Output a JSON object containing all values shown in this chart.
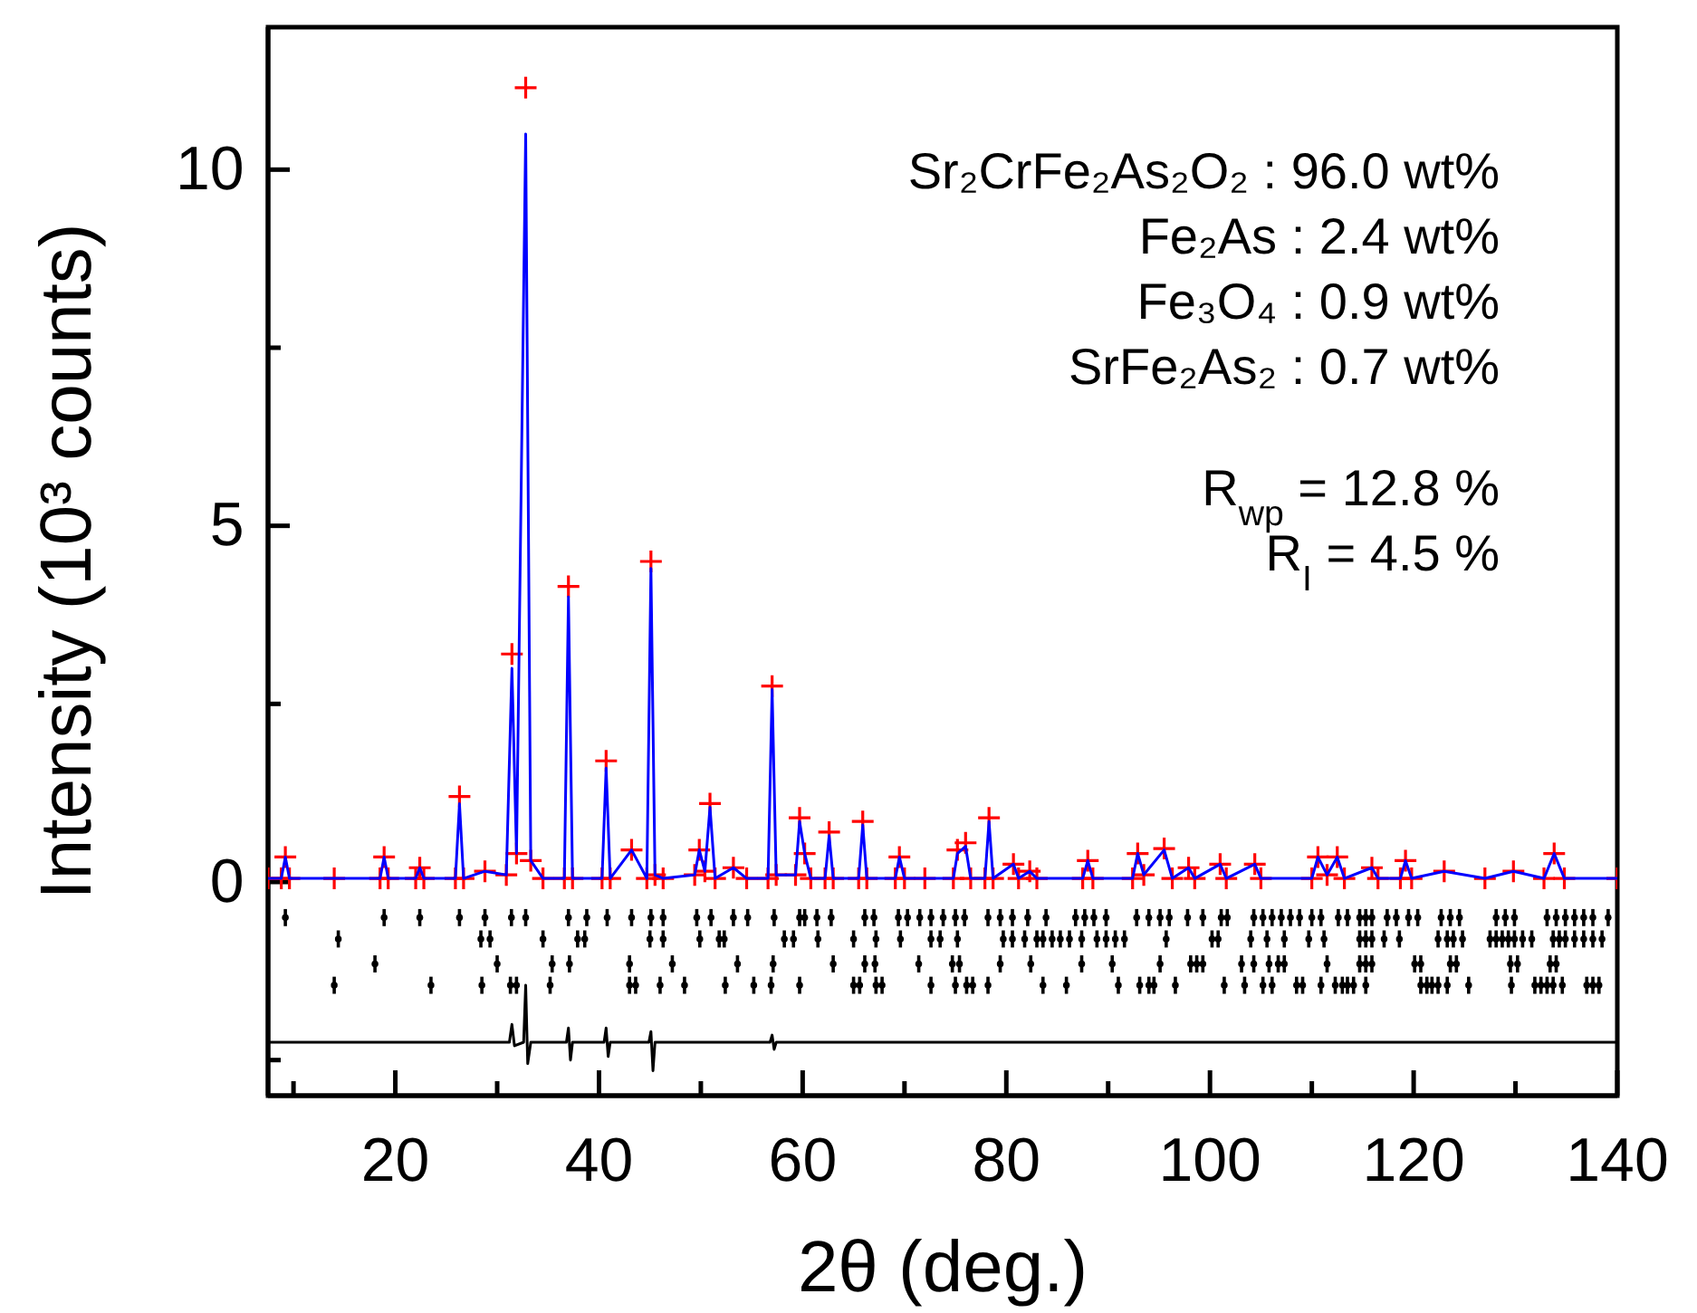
{
  "chart_data": {
    "type": "line",
    "xlabel": "2θ (deg.)",
    "ylabel": "Intensity (10³ counts)",
    "xlim": [
      7.5,
      140
    ],
    "ylim": [
      -3,
      12
    ],
    "xticks": [
      {
        "value": 10,
        "label": null
      },
      20,
      {
        "value": 30,
        "label": null
      },
      40,
      {
        "value": 50,
        "label": null
      },
      60,
      {
        "value": 70,
        "label": null
      },
      80,
      {
        "value": 90,
        "label": null
      },
      100,
      {
        "value": 110,
        "label": null
      },
      120,
      {
        "value": 130,
        "label": null
      },
      140
    ],
    "yticks": [
      {
        "value": -2.5,
        "label": null
      },
      0,
      {
        "value": 2.5,
        "label": null
      },
      5,
      {
        "value": 7.5,
        "label": null
      },
      10
    ],
    "annotations": [
      "Sr₂CrFe₂As₂O₂ : 96.0 wt%",
      "Fe₂As : 2.4 wt%",
      "Fe₃O₄ : 0.9 wt%",
      "SrFe₂As₂ : 0.7 wt%",
      "R$_{wp}$ = 12.8 %",
      "R$_{I}$ = 4.5 %"
    ],
    "series": [
      {
        "type": "scatter",
        "marker": "cross",
        "color": "#ff0000",
        "x": [
          7.5,
          8.8,
          9.2,
          9.6,
          14,
          18.5,
          18.9,
          19.3,
          22.0,
          22.4,
          22.8,
          25.9,
          26.3,
          26.7,
          28.8,
          30.9,
          31.45,
          31.9,
          32.8,
          33.3,
          34.5,
          36.6,
          37.0,
          37.4,
          40.3,
          40.7,
          41.1,
          43.2,
          44.7,
          45.1,
          45.5,
          46.3,
          49.4,
          49.85,
          50.4,
          50.9,
          51.4,
          53.2,
          54.5,
          56.6,
          57.0,
          57.4,
          59.3,
          59.7,
          60.2,
          60.8,
          62.2,
          62.6,
          63.0,
          65.5,
          65.9,
          66.3,
          69.1,
          69.5,
          70.0,
          72,
          74.8,
          75.2,
          76.0,
          76.5,
          77.9,
          78.3,
          78.7,
          80.7,
          81.2,
          82.3,
          83,
          87.5,
          88.0,
          88.5,
          92.4,
          92.9,
          93.5,
          95.5,
          96.3,
          97.9,
          98.5,
          101.0,
          101.6,
          104.4,
          105.0,
          110.0,
          110.6,
          111.5,
          112.5,
          113.2,
          115.9,
          116.5,
          118.7,
          119.2,
          119.8,
          123.0,
          127,
          129.8,
          132.8,
          133.8,
          134.8,
          140
        ],
        "values": [
          0.05,
          0.05,
          0.35,
          0.05,
          0.05,
          0.05,
          0.35,
          0.05,
          0.05,
          0.2,
          0.05,
          0.05,
          1.2,
          0.05,
          0.15,
          0.1,
          3.2,
          0.4,
          11.15,
          0.3,
          0.05,
          0.05,
          4.15,
          0.05,
          0.05,
          1.7,
          0.05,
          0.45,
          0.05,
          4.5,
          0.1,
          0.05,
          0.1,
          0.45,
          0.15,
          1.1,
          0.05,
          0.2,
          0.05,
          0.05,
          2.75,
          0.1,
          0.1,
          0.9,
          0.4,
          0.05,
          0.05,
          0.7,
          0.05,
          0.05,
          0.85,
          0.05,
          0.05,
          0.35,
          0.05,
          0.05,
          0.05,
          0.45,
          0.55,
          0.05,
          0.05,
          0.9,
          0.05,
          0.25,
          0.05,
          0.15,
          0.05,
          0.05,
          0.3,
          0.05,
          0.05,
          0.4,
          0.1,
          0.47,
          0.05,
          0.2,
          0.05,
          0.25,
          0.05,
          0.25,
          0.05,
          0.05,
          0.35,
          0.1,
          0.35,
          0.05,
          0.2,
          0.05,
          0.05,
          0.3,
          0.05,
          0.15,
          0.05,
          0.15,
          0.05,
          0.4,
          0.05,
          0.05
        ]
      },
      {
        "type": "line",
        "marker": "none",
        "color": "#0000ff",
        "x": [
          7.5,
          8.8,
          9.2,
          9.6,
          14,
          18.5,
          18.9,
          19.3,
          22.0,
          22.4,
          22.8,
          25.9,
          26.3,
          26.7,
          28.8,
          30.9,
          31.45,
          31.9,
          32.8,
          33.3,
          34.5,
          36.6,
          37.0,
          37.4,
          40.3,
          40.7,
          41.1,
          43.2,
          44.7,
          45.1,
          45.5,
          46.3,
          49.4,
          49.85,
          50.4,
          50.9,
          51.4,
          53.2,
          54.5,
          56.6,
          57.0,
          57.4,
          59.3,
          59.7,
          60.2,
          60.8,
          62.2,
          62.6,
          63.0,
          65.5,
          65.9,
          66.3,
          69.1,
          69.5,
          70.0,
          72,
          74.8,
          75.2,
          76.0,
          76.5,
          77.9,
          78.3,
          78.7,
          80.7,
          81.2,
          82.3,
          83,
          87.5,
          88.0,
          88.5,
          92.4,
          92.9,
          93.5,
          95.5,
          96.3,
          97.9,
          98.5,
          101.0,
          101.6,
          104.4,
          105.0,
          110.0,
          110.6,
          111.5,
          112.5,
          113.2,
          115.9,
          116.5,
          118.7,
          119.2,
          119.8,
          123.0,
          127,
          129.8,
          132.8,
          133.8,
          134.8,
          140
        ],
        "values": [
          0.05,
          0.05,
          0.35,
          0.05,
          0.05,
          0.05,
          0.35,
          0.05,
          0.05,
          0.2,
          0.05,
          0.05,
          1.1,
          0.05,
          0.15,
          0.1,
          3.0,
          0.4,
          10.5,
          0.3,
          0.05,
          0.05,
          4.0,
          0.05,
          0.05,
          1.6,
          0.05,
          0.45,
          0.05,
          4.4,
          0.1,
          0.05,
          0.1,
          0.45,
          0.15,
          1.05,
          0.05,
          0.2,
          0.05,
          0.05,
          2.7,
          0.1,
          0.1,
          0.85,
          0.4,
          0.05,
          0.05,
          0.65,
          0.05,
          0.05,
          0.8,
          0.05,
          0.05,
          0.35,
          0.05,
          0.05,
          0.05,
          0.4,
          0.5,
          0.05,
          0.05,
          0.85,
          0.05,
          0.25,
          0.05,
          0.15,
          0.05,
          0.05,
          0.3,
          0.05,
          0.05,
          0.4,
          0.1,
          0.45,
          0.05,
          0.2,
          0.05,
          0.25,
          0.05,
          0.25,
          0.05,
          0.05,
          0.35,
          0.1,
          0.35,
          0.05,
          0.2,
          0.05,
          0.05,
          0.3,
          0.05,
          0.15,
          0.05,
          0.15,
          0.05,
          0.4,
          0.05,
          0.05
        ]
      },
      {
        "type": "scatter",
        "marker": "circle",
        "color": "#000000",
        "x": [
          9.2,
          18.9,
          22.4,
          26.3,
          28.8,
          31.4,
          32.8,
          37.0,
          38.8,
          40.8,
          43.2,
          45.1,
          46.3,
          49.6,
          51.0,
          53.2,
          54.6,
          57.2,
          59.7,
          60.2,
          61.4,
          62.8,
          66.1,
          67.0,
          69.4,
          70.3,
          71.5,
          72.6,
          73.8,
          75.0,
          75.9,
          78.2,
          79.4,
          80.6,
          82.1,
          83.9,
          86.8,
          87.7,
          88.6,
          89.8,
          92.8,
          94.0,
          95.1,
          96.0,
          97.8,
          99.3,
          101.1,
          101.7,
          104.3,
          105.2,
          106.1,
          107.0,
          107.9,
          108.8,
          110.0,
          110.9,
          112.6,
          113.5,
          114.7,
          115.3,
          115.9,
          117.4,
          118.3,
          119.5,
          120.4,
          122.7,
          123.6,
          124.5,
          128.1,
          129.0,
          129.9,
          133.1,
          134.0,
          134.9,
          135.8,
          136.7,
          137.6,
          139.1
        ],
        "values": [
          -0.5,
          -0.5,
          -0.5,
          -0.5,
          -0.5,
          -0.5,
          -0.5,
          -0.5,
          -0.5,
          -0.5,
          -0.5,
          -0.5,
          -0.5,
          -0.5,
          -0.5,
          -0.5,
          -0.5,
          -0.5,
          -0.5,
          -0.5,
          -0.5,
          -0.5,
          -0.5,
          -0.5,
          -0.5,
          -0.5,
          -0.5,
          -0.5,
          -0.5,
          -0.5,
          -0.5,
          -0.5,
          -0.5,
          -0.5,
          -0.5,
          -0.5,
          -0.5,
          -0.5,
          -0.5,
          -0.5,
          -0.5,
          -0.5,
          -0.5,
          -0.5,
          -0.5,
          -0.5,
          -0.5,
          -0.5,
          -0.5,
          -0.5,
          -0.5,
          -0.5,
          -0.5,
          -0.5,
          -0.5,
          -0.5,
          -0.5,
          -0.5,
          -0.5,
          -0.5,
          -0.5,
          -0.5,
          -0.5,
          -0.5,
          -0.5,
          -0.5,
          -0.5,
          -0.5,
          -0.5,
          -0.5,
          -0.5,
          -0.5,
          -0.5,
          -0.5,
          -0.5,
          -0.5,
          -0.5,
          -0.5
        ],
        "errors": [
          0.12,
          0.12,
          0.12,
          0.12,
          0.12,
          0.12,
          0.12,
          0.12,
          0.12,
          0.12,
          0.12,
          0.12,
          0.12,
          0.12,
          0.12,
          0.12,
          0.12,
          0.12,
          0.12,
          0.12,
          0.12,
          0.12,
          0.12,
          0.12,
          0.12,
          0.12,
          0.12,
          0.12,
          0.12,
          0.12,
          0.12,
          0.12,
          0.12,
          0.12,
          0.12,
          0.12,
          0.12,
          0.12,
          0.12,
          0.12,
          0.12,
          0.12,
          0.12,
          0.12,
          0.12,
          0.12,
          0.12,
          0.12,
          0.12,
          0.12,
          0.12,
          0.12,
          0.12,
          0.12,
          0.12,
          0.12,
          0.12,
          0.12,
          0.12,
          0.12,
          0.12,
          0.12,
          0.12,
          0.12,
          0.12,
          0.12,
          0.12,
          0.12,
          0.12,
          0.12,
          0.12,
          0.12,
          0.12,
          0.12,
          0.12,
          0.12,
          0.12,
          0.12
        ]
      },
      {
        "type": "scatter",
        "marker": "circle",
        "color": "#000000",
        "x": [
          14.4,
          28.4,
          29.3,
          34.5,
          37.9,
          38.6,
          45.0,
          46.3,
          49.9,
          51.8,
          52.3,
          58.2,
          59.1,
          61.5,
          65.0,
          67.2,
          69.6,
          72.6,
          73.5,
          75.2,
          79.7,
          80.6,
          81.8,
          83.0,
          83.6,
          84.5,
          85.3,
          86.2,
          87.4,
          88.9,
          89.8,
          90.7,
          91.6,
          95.7,
          100.2,
          100.8,
          104.0,
          105.6,
          107.3,
          109.7,
          111.2,
          114.7,
          115.3,
          115.9,
          117.1,
          118.6,
          122.4,
          123.3,
          123.9,
          124.8,
          127.5,
          128.1,
          128.7,
          129.3,
          129.9,
          130.7,
          131.6,
          133.7,
          134.3,
          134.9,
          135.8,
          136.7,
          137.6,
          138.5
        ],
        "values": [
          -0.8,
          -0.8,
          -0.8,
          -0.8,
          -0.8,
          -0.8,
          -0.8,
          -0.8,
          -0.8,
          -0.8,
          -0.8,
          -0.8,
          -0.8,
          -0.8,
          -0.8,
          -0.8,
          -0.8,
          -0.8,
          -0.8,
          -0.8,
          -0.8,
          -0.8,
          -0.8,
          -0.8,
          -0.8,
          -0.8,
          -0.8,
          -0.8,
          -0.8,
          -0.8,
          -0.8,
          -0.8,
          -0.8,
          -0.8,
          -0.8,
          -0.8,
          -0.8,
          -0.8,
          -0.8,
          -0.8,
          -0.8,
          -0.8,
          -0.8,
          -0.8,
          -0.8,
          -0.8,
          -0.8,
          -0.8,
          -0.8,
          -0.8,
          -0.8,
          -0.8,
          -0.8,
          -0.8,
          -0.8,
          -0.8,
          -0.8,
          -0.8,
          -0.8,
          -0.8,
          -0.8,
          -0.8,
          -0.8,
          -0.8
        ],
        "errors": [
          0.12,
          0.12,
          0.12,
          0.12,
          0.12,
          0.12,
          0.12,
          0.12,
          0.12,
          0.12,
          0.12,
          0.12,
          0.12,
          0.12,
          0.12,
          0.12,
          0.12,
          0.12,
          0.12,
          0.12,
          0.12,
          0.12,
          0.12,
          0.12,
          0.12,
          0.12,
          0.12,
          0.12,
          0.12,
          0.12,
          0.12,
          0.12,
          0.12,
          0.12,
          0.12,
          0.12,
          0.12,
          0.12,
          0.12,
          0.12,
          0.12,
          0.12,
          0.12,
          0.12,
          0.12,
          0.12,
          0.12,
          0.12,
          0.12,
          0.12,
          0.12,
          0.12,
          0.12,
          0.12,
          0.12,
          0.12,
          0.12,
          0.12,
          0.12,
          0.12,
          0.12,
          0.12,
          0.12,
          0.12
        ]
      },
      {
        "type": "scatter",
        "marker": "circle",
        "color": "#000000",
        "x": [
          18.0,
          30.0,
          35.4,
          37.1,
          43.0,
          47.2,
          53.6,
          57.1,
          63.0,
          66.1,
          67.1,
          71.4,
          74.7,
          75.4,
          79.4,
          82.4,
          87.4,
          90.4,
          95.1,
          98.1,
          98.7,
          99.3,
          103.1,
          104.3,
          105.8,
          106.7,
          107.3,
          111.5,
          114.7,
          115.3,
          115.9,
          120.1,
          120.7,
          123.6,
          124.2,
          129.5,
          130.2,
          133.4,
          134.0
        ],
        "values": [
          -1.15,
          -1.15,
          -1.15,
          -1.15,
          -1.15,
          -1.15,
          -1.15,
          -1.15,
          -1.15,
          -1.15,
          -1.15,
          -1.15,
          -1.15,
          -1.15,
          -1.15,
          -1.15,
          -1.15,
          -1.15,
          -1.15,
          -1.15,
          -1.15,
          -1.15,
          -1.15,
          -1.15,
          -1.15,
          -1.15,
          -1.15,
          -1.15,
          -1.15,
          -1.15,
          -1.15,
          -1.15,
          -1.15,
          -1.15,
          -1.15,
          -1.15,
          -1.15,
          -1.15,
          -1.15
        ],
        "errors": [
          0.12,
          0.12,
          0.12,
          0.12,
          0.12,
          0.12,
          0.12,
          0.12,
          0.12,
          0.12,
          0.12,
          0.12,
          0.12,
          0.12,
          0.12,
          0.12,
          0.12,
          0.12,
          0.12,
          0.12,
          0.12,
          0.12,
          0.12,
          0.12,
          0.12,
          0.12,
          0.12,
          0.12,
          0.12,
          0.12,
          0.12,
          0.12,
          0.12,
          0.12,
          0.12,
          0.12,
          0.12,
          0.12,
          0.12
        ]
      },
      {
        "type": "scatter",
        "marker": "circle",
        "color": "#000000",
        "x": [
          14.0,
          23.5,
          28.5,
          31.3,
          31.9,
          35.2,
          43.0,
          43.6,
          46.0,
          48.4,
          52.4,
          55.2,
          56.9,
          59.7,
          65.0,
          65.6,
          67.2,
          67.8,
          72.6,
          75.0,
          76.1,
          76.7,
          78.2,
          83.6,
          85.9,
          91.0,
          93.1,
          94.0,
          94.5,
          96.6,
          101.4,
          103.4,
          105.2,
          106.1,
          108.5,
          109.1,
          110.9,
          112.3,
          113.0,
          113.5,
          114.1,
          115.3,
          120.7,
          121.3,
          121.8,
          122.4,
          123.3,
          125.4,
          129.6,
          131.9,
          132.5,
          133.1,
          133.7,
          134.6,
          137.0,
          137.6,
          138.2
        ],
        "values": [
          -1.45,
          -1.45,
          -1.45,
          -1.45,
          -1.45,
          -1.45,
          -1.45,
          -1.45,
          -1.45,
          -1.45,
          -1.45,
          -1.45,
          -1.45,
          -1.45,
          -1.45,
          -1.45,
          -1.45,
          -1.45,
          -1.45,
          -1.45,
          -1.45,
          -1.45,
          -1.45,
          -1.45,
          -1.45,
          -1.45,
          -1.45,
          -1.45,
          -1.45,
          -1.45,
          -1.45,
          -1.45,
          -1.45,
          -1.45,
          -1.45,
          -1.45,
          -1.45,
          -1.45,
          -1.45,
          -1.45,
          -1.45,
          -1.45,
          -1.45,
          -1.45,
          -1.45,
          -1.45,
          -1.45,
          -1.45,
          -1.45,
          -1.45,
          -1.45,
          -1.45,
          -1.45,
          -1.45,
          -1.45,
          -1.45,
          -1.45
        ],
        "errors": [
          0.12,
          0.12,
          0.12,
          0.12,
          0.12,
          0.12,
          0.12,
          0.12,
          0.12,
          0.12,
          0.12,
          0.12,
          0.12,
          0.12,
          0.12,
          0.12,
          0.12,
          0.12,
          0.12,
          0.12,
          0.12,
          0.12,
          0.12,
          0.12,
          0.12,
          0.12,
          0.12,
          0.12,
          0.12,
          0.12,
          0.12,
          0.12,
          0.12,
          0.12,
          0.12,
          0.12,
          0.12,
          0.12,
          0.12,
          0.12,
          0.12,
          0.12,
          0.12,
          0.12,
          0.12,
          0.12,
          0.12,
          0.12,
          0.12,
          0.12,
          0.12,
          0.12,
          0.12,
          0.12,
          0.12,
          0.12,
          0.12
        ]
      },
      {
        "marker": "none",
        "color": "#000000",
        "x": [
          7.5,
          31.2,
          31.45,
          31.7,
          32.6,
          32.8,
          33.0,
          33.3,
          36.8,
          37.0,
          37.2,
          37.4,
          40.5,
          40.7,
          40.9,
          41.1,
          44.9,
          45.1,
          45.3,
          45.5,
          56.8,
          57.0,
          57.2,
          57.4,
          140
        ],
        "values": [
          -2.25,
          -2.25,
          -2.0,
          -2.3,
          -2.25,
          -1.45,
          -2.55,
          -2.25,
          -2.25,
          -2.05,
          -2.5,
          -2.25,
          -2.25,
          -2.05,
          -2.45,
          -2.25,
          -2.25,
          -2.1,
          -2.65,
          -2.25,
          -2.25,
          -2.15,
          -2.35,
          -2.25,
          -2.25
        ]
      }
    ]
  }
}
